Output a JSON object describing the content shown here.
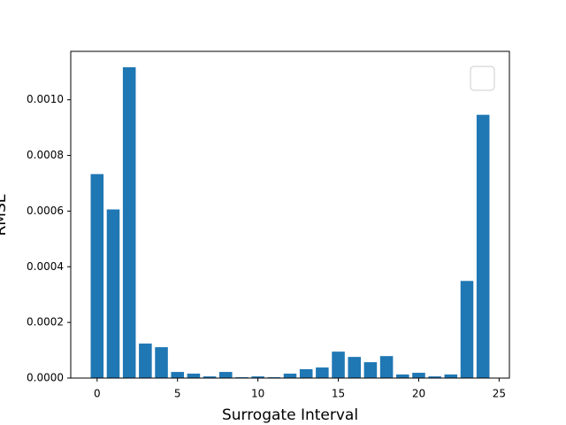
{
  "chart_data": {
    "type": "bar",
    "xlabel": "Surrogate Interval",
    "ylabel": "RMSE",
    "x": [
      0,
      1,
      2,
      3,
      4,
      5,
      6,
      7,
      8,
      9,
      10,
      11,
      12,
      13,
      14,
      15,
      16,
      17,
      18,
      19,
      20,
      21,
      22,
      23,
      24
    ],
    "values": [
      0.000733,
      0.000606,
      0.001117,
      0.000124,
      0.000111,
      2.2e-05,
      1.6e-05,
      6e-06,
      2.2e-05,
      3e-06,
      6e-06,
      3e-06,
      1.6e-05,
      3.2e-05,
      3.8e-05,
      9.5e-05,
      7.6e-05,
      5.7e-05,
      7.9e-05,
      1.3e-05,
      1.9e-05,
      6e-06,
      1.3e-05,
      0.000349,
      0.000946
    ],
    "color": "#1f77b4",
    "xlim": [
      -1.64,
      25.64
    ],
    "ylim": [
      0,
      0.001174
    ],
    "xticks": [
      0,
      5,
      10,
      15,
      20,
      25
    ],
    "yticks": [
      {
        "value": 0,
        "label": "0.0000"
      },
      {
        "value": 0.0002,
        "label": "0.0002"
      },
      {
        "value": 0.0004,
        "label": "0.0004"
      },
      {
        "value": 0.0006,
        "label": "0.0006"
      },
      {
        "value": 0.0008,
        "label": "0.0008"
      },
      {
        "value": 0.001,
        "label": "0.0010"
      }
    ]
  }
}
